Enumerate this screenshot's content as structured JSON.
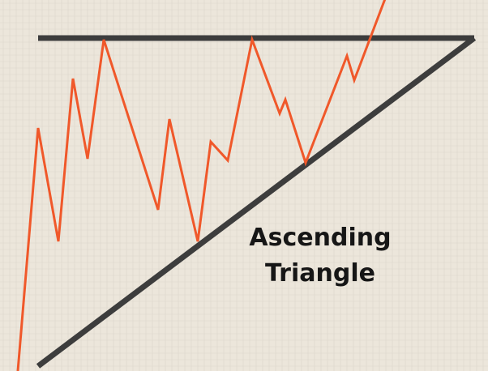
{
  "caption": {
    "line1": "Ascending",
    "line2": "Triangle"
  },
  "colors": {
    "background": "#ece6db",
    "grid": "#dcd6cb",
    "resistance_line": "#3d3d3d",
    "support_line": "#3d3d3d",
    "price_line": "#f0582a",
    "caption_text": "#161616"
  }
}
